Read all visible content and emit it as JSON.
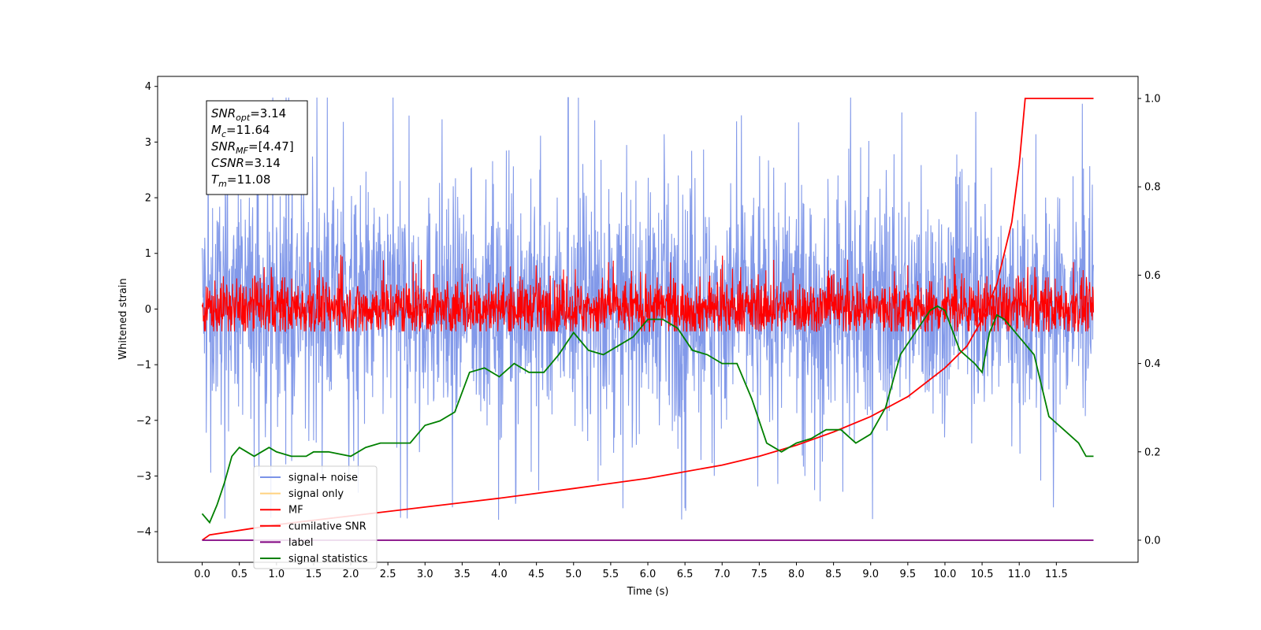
{
  "chart_data": {
    "type": "line",
    "xlabel": "Time (s)",
    "ylabel": "Whitened strain",
    "xlim": [
      -0.6,
      12.6
    ],
    "ylim": [
      -4.55,
      4.18
    ],
    "ylim_right": [
      -0.05,
      1.05
    ],
    "x_ticks": [
      "0.0",
      "0.5",
      "1.0",
      "1.5",
      "2.0",
      "2.5",
      "3.0",
      "3.5",
      "4.0",
      "4.5",
      "5.0",
      "5.5",
      "6.0",
      "6.5",
      "7.0",
      "7.5",
      "8.0",
      "8.5",
      "9.0",
      "9.5",
      "10.0",
      "10.5",
      "11.0",
      "11.5"
    ],
    "y_ticks_left": [
      "−4",
      "−3",
      "−2",
      "−1",
      "0",
      "1",
      "2",
      "3",
      "4"
    ],
    "y_ticks_right": [
      "0.0",
      "0.2",
      "0.4",
      "0.6",
      "0.8",
      "1.0"
    ],
    "legend_position": "lower-left",
    "legend": [
      {
        "label": "signal+ noise",
        "color": "#7b93e8"
      },
      {
        "label": "signal only",
        "color": "#ffd27f"
      },
      {
        "label": "MF",
        "color": "#ff0000"
      },
      {
        "label": "cumilative SNR",
        "color": "#ff0000"
      },
      {
        "label": "label",
        "color": "#800080"
      },
      {
        "label": "signal statistics",
        "color": "#008000"
      }
    ],
    "annotation": [
      {
        "base": "SNR",
        "sub": "opt",
        "value": "=3.14"
      },
      {
        "base": "M",
        "sub": "c",
        "value": "=11.64"
      },
      {
        "base": "SNR",
        "sub": "MF",
        "value": "=[4.47]"
      },
      {
        "base": "CSNR",
        "sub": "",
        "value": "=3.14"
      },
      {
        "base": "T",
        "sub": "m",
        "value": "=11.08"
      }
    ],
    "series": [
      {
        "name": "signal+ noise",
        "axis": "left",
        "color": "#7b93e8",
        "kind": "noise",
        "x_range": [
          0.0,
          12.0
        ],
        "center": 0.0,
        "band": [
          -1.2,
          1.4
        ],
        "max": 3.8,
        "min": -4.15
      },
      {
        "name": "MF",
        "axis": "left",
        "color": "#ff0000",
        "kind": "noise",
        "x_range": [
          0.0,
          12.0
        ],
        "center": 0.0,
        "band": [
          -0.3,
          0.35
        ],
        "max": 1.0,
        "min": -0.4
      },
      {
        "name": "cumilative SNR",
        "axis": "right",
        "color": "#ff0000",
        "x": [
          0.0,
          0.1,
          1.0,
          2.0,
          3.0,
          4.0,
          5.0,
          6.0,
          7.0,
          7.5,
          8.0,
          8.5,
          9.0,
          9.5,
          10.0,
          10.3,
          10.5,
          10.7,
          10.9,
          11.0,
          11.08,
          12.0
        ],
        "y": [
          0.0,
          0.012,
          0.035,
          0.055,
          0.075,
          0.095,
          0.117,
          0.14,
          0.17,
          0.19,
          0.215,
          0.245,
          0.28,
          0.325,
          0.39,
          0.44,
          0.5,
          0.58,
          0.72,
          0.85,
          1.0,
          1.0
        ]
      },
      {
        "name": "label",
        "axis": "right",
        "color": "#800080",
        "x": [
          0.0,
          12.0
        ],
        "y": [
          0.0,
          0.0
        ]
      },
      {
        "name": "signal statistics",
        "axis": "right",
        "color": "#008000",
        "x": [
          0.0,
          0.1,
          0.2,
          0.3,
          0.4,
          0.5,
          0.6,
          0.7,
          0.8,
          0.9,
          1.0,
          1.2,
          1.4,
          1.5,
          1.7,
          2.0,
          2.2,
          2.4,
          2.6,
          2.8,
          3.0,
          3.2,
          3.4,
          3.6,
          3.8,
          4.0,
          4.2,
          4.4,
          4.6,
          4.8,
          5.0,
          5.2,
          5.4,
          5.6,
          5.8,
          6.0,
          6.2,
          6.4,
          6.6,
          6.8,
          7.0,
          7.2,
          7.4,
          7.6,
          7.8,
          8.0,
          8.2,
          8.4,
          8.6,
          8.8,
          9.0,
          9.2,
          9.4,
          9.6,
          9.8,
          9.9,
          10.0,
          10.2,
          10.4,
          10.5,
          10.6,
          10.7,
          10.8,
          11.0,
          11.2,
          11.4,
          11.6,
          11.8,
          11.9,
          12.0
        ],
        "y": [
          0.06,
          0.04,
          0.08,
          0.13,
          0.19,
          0.21,
          0.2,
          0.19,
          0.2,
          0.21,
          0.2,
          0.19,
          0.19,
          0.2,
          0.2,
          0.19,
          0.21,
          0.22,
          0.22,
          0.22,
          0.26,
          0.27,
          0.29,
          0.38,
          0.39,
          0.37,
          0.4,
          0.38,
          0.38,
          0.42,
          0.47,
          0.43,
          0.42,
          0.44,
          0.46,
          0.5,
          0.5,
          0.48,
          0.43,
          0.42,
          0.4,
          0.4,
          0.32,
          0.22,
          0.2,
          0.22,
          0.23,
          0.25,
          0.25,
          0.22,
          0.24,
          0.3,
          0.42,
          0.47,
          0.52,
          0.53,
          0.52,
          0.43,
          0.4,
          0.38,
          0.47,
          0.51,
          0.5,
          0.46,
          0.42,
          0.28,
          0.25,
          0.22,
          0.19,
          0.19
        ]
      }
    ]
  }
}
